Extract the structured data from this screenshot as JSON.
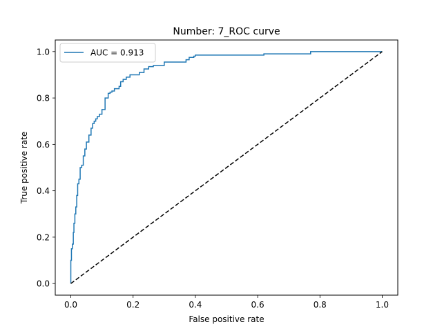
{
  "chart_data": {
    "type": "line",
    "title": "Number: 7_ROC curve",
    "xlabel": "False positive rate",
    "ylabel": "True positive rate",
    "xlim": [
      -0.05,
      1.05
    ],
    "ylim": [
      -0.05,
      1.05
    ],
    "xticks": [
      0.0,
      0.2,
      0.4,
      0.6,
      0.8,
      1.0
    ],
    "xtick_labels": [
      "0.0",
      "0.2",
      "0.4",
      "0.6",
      "0.8",
      "1.0"
    ],
    "yticks": [
      0.0,
      0.2,
      0.4,
      0.6,
      0.8,
      1.0
    ],
    "ytick_labels": [
      "0.0",
      "0.2",
      "0.4",
      "0.6",
      "0.8",
      "1.0"
    ],
    "grid": false,
    "legend_position": "upper-left",
    "series": [
      {
        "name": "AUC = 0.913",
        "color": "#1f77b4",
        "style": "solid",
        "x": [
          0.0,
          0.0,
          0.002,
          0.002,
          0.005,
          0.005,
          0.008,
          0.008,
          0.01,
          0.01,
          0.013,
          0.013,
          0.016,
          0.016,
          0.019,
          0.019,
          0.022,
          0.022,
          0.026,
          0.026,
          0.03,
          0.03,
          0.035,
          0.035,
          0.04,
          0.04,
          0.045,
          0.045,
          0.05,
          0.05,
          0.058,
          0.058,
          0.065,
          0.065,
          0.07,
          0.07,
          0.075,
          0.075,
          0.08,
          0.08,
          0.085,
          0.085,
          0.092,
          0.092,
          0.1,
          0.1,
          0.11,
          0.11,
          0.12,
          0.12,
          0.126,
          0.126,
          0.132,
          0.132,
          0.14,
          0.14,
          0.155,
          0.155,
          0.16,
          0.16,
          0.168,
          0.168,
          0.178,
          0.178,
          0.19,
          0.19,
          0.22,
          0.22,
          0.235,
          0.235,
          0.25,
          0.25,
          0.265,
          0.265,
          0.3,
          0.3,
          0.37,
          0.37,
          0.38,
          0.38,
          0.395,
          0.395,
          0.4,
          0.4,
          0.62,
          0.62,
          0.77,
          0.77,
          1.0
        ],
        "y": [
          0.0,
          0.1,
          0.1,
          0.15,
          0.15,
          0.17,
          0.17,
          0.22,
          0.22,
          0.26,
          0.26,
          0.3,
          0.3,
          0.33,
          0.33,
          0.38,
          0.38,
          0.43,
          0.43,
          0.45,
          0.45,
          0.5,
          0.5,
          0.51,
          0.51,
          0.55,
          0.55,
          0.58,
          0.58,
          0.61,
          0.61,
          0.64,
          0.64,
          0.67,
          0.67,
          0.69,
          0.69,
          0.7,
          0.7,
          0.71,
          0.71,
          0.72,
          0.72,
          0.73,
          0.73,
          0.75,
          0.75,
          0.8,
          0.8,
          0.82,
          0.82,
          0.825,
          0.825,
          0.83,
          0.83,
          0.84,
          0.84,
          0.85,
          0.85,
          0.87,
          0.87,
          0.88,
          0.88,
          0.89,
          0.89,
          0.9,
          0.9,
          0.91,
          0.91,
          0.925,
          0.925,
          0.935,
          0.935,
          0.94,
          0.94,
          0.955,
          0.955,
          0.965,
          0.965,
          0.975,
          0.975,
          0.98,
          0.98,
          0.985,
          0.985,
          0.99,
          0.99,
          1.0,
          1.0
        ]
      },
      {
        "name": "",
        "color": "#000000",
        "style": "dashed",
        "x": [
          0.0,
          1.0
        ],
        "y": [
          0.0,
          1.0
        ]
      }
    ]
  }
}
